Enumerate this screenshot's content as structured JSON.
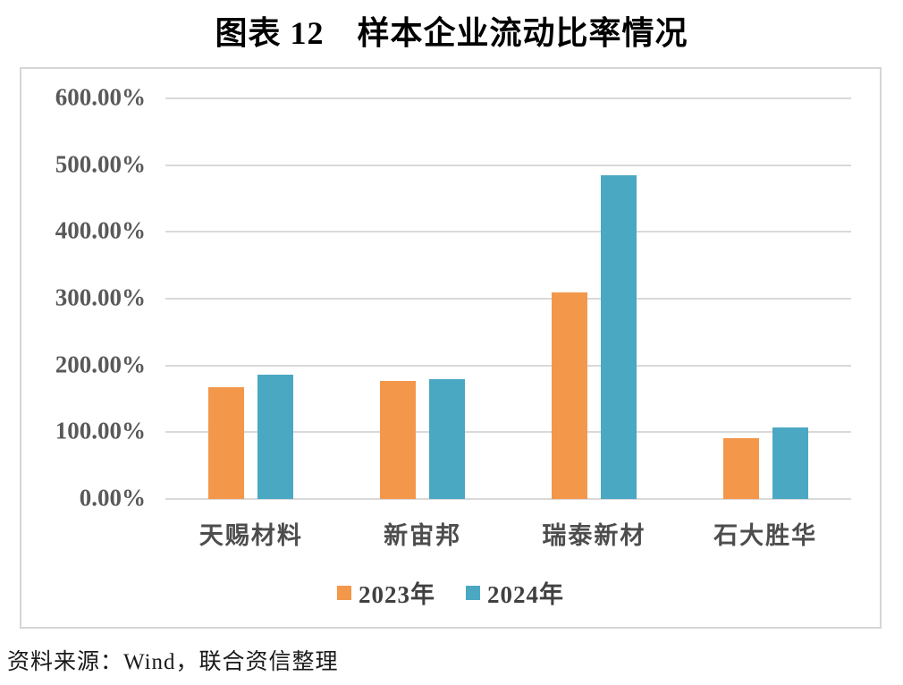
{
  "page": {
    "title": "图表 12　样本企业流动比率情况",
    "source": "资料来源：Wind，联合资信整理"
  },
  "chart_data": {
    "type": "bar",
    "title": "图表 12　样本企业流动比率情况",
    "categories": [
      "天赐材料",
      "新宙邦",
      "瑞泰新材",
      "石大胜华"
    ],
    "series": [
      {
        "name": "2023年",
        "color": "#F3974B",
        "values": [
          168,
          177,
          309,
          91
        ]
      },
      {
        "name": "2024年",
        "color": "#4BA8C3",
        "values": [
          186,
          179,
          485,
          107
        ]
      }
    ],
    "value_unit": "percent",
    "ylim": [
      0,
      600
    ],
    "ytick_step": 100,
    "ytick_labels": [
      "0.00%",
      "100.00%",
      "200.00%",
      "300.00%",
      "400.00%",
      "500.00%",
      "600.00%"
    ],
    "xlabel": "",
    "ylabel": "",
    "grid": true,
    "legend_position": "bottom-inside"
  },
  "colors": {
    "grid": "#D9D9D9",
    "border": "#D6D6D6",
    "y_axis_text": "#595959",
    "x_axis_text": "#4D4D4D",
    "legend_text": "#404040",
    "title_text": "#000000",
    "background": "#FFFFFF"
  }
}
